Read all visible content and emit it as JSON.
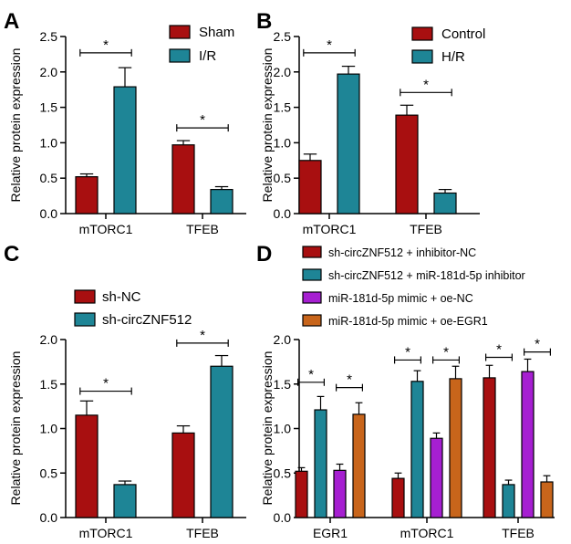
{
  "figure": {
    "panel_labels": [
      "A",
      "B",
      "C",
      "D"
    ]
  },
  "chart_data": [
    {
      "panel": "A",
      "type": "bar",
      "categories": [
        "mTORC1",
        "TFEB"
      ],
      "ylabel": "Relative protein expression",
      "ylim": [
        0,
        2.5
      ],
      "yticks": [
        "0.0",
        "0.5",
        "1.0",
        "1.5",
        "2.0",
        "2.5"
      ],
      "legend_position": "top-right",
      "series": [
        {
          "name": "Sham",
          "color": "#a80f10",
          "values": [
            0.52,
            0.97
          ],
          "errors": [
            0.04,
            0.06
          ]
        },
        {
          "name": "I/R",
          "color": "#1e8596",
          "values": [
            1.79,
            0.34
          ],
          "errors": [
            0.27,
            0.04
          ]
        }
      ],
      "significance": [
        {
          "category": 0,
          "label": "*",
          "y": 2.27
        },
        {
          "category": 1,
          "label": "*",
          "y": 1.21
        }
      ]
    },
    {
      "panel": "B",
      "type": "bar",
      "categories": [
        "mTORC1",
        "TFEB"
      ],
      "ylabel": "Relative protein expression",
      "ylim": [
        0,
        2.5
      ],
      "yticks": [
        "0.0",
        "0.5",
        "1.0",
        "1.5",
        "2.0",
        "2.5"
      ],
      "legend_position": "top-right",
      "series": [
        {
          "name": "Control",
          "color": "#a80f10",
          "values": [
            0.75,
            1.39
          ],
          "errors": [
            0.09,
            0.14
          ]
        },
        {
          "name": "H/R",
          "color": "#1e8596",
          "values": [
            1.97,
            0.29
          ],
          "errors": [
            0.11,
            0.05
          ]
        }
      ],
      "significance": [
        {
          "category": 0,
          "label": "*",
          "y": 2.27
        },
        {
          "category": 1,
          "label": "*",
          "y": 1.71
        }
      ]
    },
    {
      "panel": "C",
      "type": "bar",
      "categories": [
        "mTORC1",
        "TFEB"
      ],
      "ylabel": "Relative protein expression",
      "ylim": [
        0,
        2.0
      ],
      "yticks": [
        "0.0",
        "0.5",
        "1.0",
        "1.5",
        "2.0"
      ],
      "legend_position": "top-left",
      "series": [
        {
          "name": "sh-NC",
          "color": "#a80f10",
          "values": [
            1.15,
            0.95
          ],
          "errors": [
            0.16,
            0.08
          ]
        },
        {
          "name": "sh-circZNF512",
          "color": "#1e8596",
          "values": [
            0.37,
            1.7
          ],
          "errors": [
            0.04,
            0.12
          ]
        }
      ],
      "significance": [
        {
          "category": 0,
          "label": "*",
          "y": 1.42
        },
        {
          "category": 1,
          "label": "*",
          "y": 1.96
        }
      ]
    },
    {
      "panel": "D",
      "type": "bar",
      "categories": [
        "EGR1",
        "mTORC1",
        "TFEB"
      ],
      "ylabel": "Relative protein expression",
      "ylim": [
        0,
        2.0
      ],
      "yticks": [
        "0.0",
        "0.5",
        "1.0",
        "1.5",
        "2.0"
      ],
      "legend_position": "top",
      "series": [
        {
          "name": "sh-circZNF512 + inhibitor-NC",
          "color": "#a80f10",
          "values": [
            0.52,
            0.44,
            1.57
          ],
          "errors": [
            0.04,
            0.06,
            0.14
          ]
        },
        {
          "name": "sh-circZNF512 + miR-181d-5p inhibitor",
          "color": "#1e8596",
          "values": [
            1.21,
            1.53,
            0.37
          ],
          "errors": [
            0.15,
            0.12,
            0.05
          ]
        },
        {
          "name": "miR-181d-5p mimic + oe-NC",
          "color": "#a61fd1",
          "values": [
            0.53,
            0.89,
            1.64
          ],
          "errors": [
            0.07,
            0.06,
            0.14
          ]
        },
        {
          "name": "miR-181d-5p mimic + oe-EGR1",
          "color": "#c8651b",
          "values": [
            1.16,
            1.56,
            0.4
          ],
          "errors": [
            0.13,
            0.14,
            0.07
          ]
        }
      ],
      "significance": [
        {
          "category": 0,
          "pair": [
            0,
            1
          ],
          "label": "*",
          "y": 1.52
        },
        {
          "category": 0,
          "pair": [
            2,
            3
          ],
          "label": "*",
          "y": 1.46
        },
        {
          "category": 1,
          "pair": [
            0,
            1
          ],
          "label": "*",
          "y": 1.77
        },
        {
          "category": 1,
          "pair": [
            2,
            3
          ],
          "label": "*",
          "y": 1.77
        },
        {
          "category": 2,
          "pair": [
            0,
            1
          ],
          "label": "*",
          "y": 1.8
        },
        {
          "category": 2,
          "pair": [
            2,
            3
          ],
          "label": "*",
          "y": 1.86
        }
      ]
    }
  ]
}
